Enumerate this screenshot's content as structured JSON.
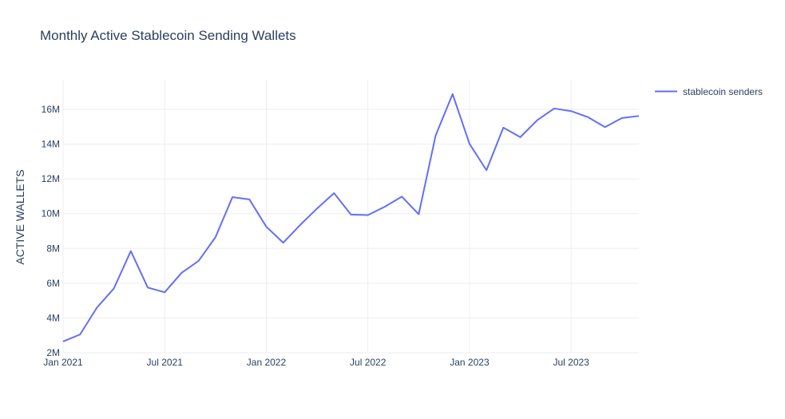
{
  "chart_data": {
    "type": "line",
    "title": "Monthly Active Stablecoin Sending Wallets",
    "xlabel": "",
    "ylabel": "ACTIVE WALLETS",
    "x": [
      "2021-01",
      "2021-02",
      "2021-03",
      "2021-04",
      "2021-05",
      "2021-06",
      "2021-07",
      "2021-08",
      "2021-09",
      "2021-10",
      "2021-11",
      "2021-12",
      "2022-01",
      "2022-02",
      "2022-03",
      "2022-04",
      "2022-05",
      "2022-06",
      "2022-07",
      "2022-08",
      "2022-09",
      "2022-10",
      "2022-11",
      "2022-12",
      "2023-01",
      "2023-02",
      "2023-03",
      "2023-04",
      "2023-05",
      "2023-06",
      "2023-07",
      "2023-08",
      "2023-09",
      "2023-10",
      "2023-11"
    ],
    "series": [
      {
        "name": "stablecoin senders",
        "color": "#636efa",
        "values": [
          2.65,
          3.05,
          4.6,
          5.7,
          7.85,
          5.75,
          5.48,
          6.6,
          7.28,
          8.65,
          10.95,
          10.82,
          9.25,
          8.33,
          9.35,
          10.3,
          11.18,
          9.95,
          9.92,
          10.4,
          10.98,
          9.97,
          14.5,
          16.88,
          14.02,
          12.5,
          14.95,
          14.4,
          15.38,
          16.05,
          15.9,
          15.55,
          14.98,
          15.5,
          15.62
        ]
      }
    ],
    "value_unit": "millions",
    "x_ticks": [
      "Jan 2021",
      "Jul 2021",
      "Jan 2022",
      "Jul 2022",
      "Jan 2023",
      "Jul 2023"
    ],
    "y_ticks": [
      "2M",
      "4M",
      "6M",
      "8M",
      "10M",
      "12M",
      "14M",
      "16M"
    ],
    "ylim": [
      2,
      17.7
    ],
    "xlim": [
      "2021-01",
      "2023-11"
    ],
    "grid": true,
    "legend_position": "top-right"
  }
}
